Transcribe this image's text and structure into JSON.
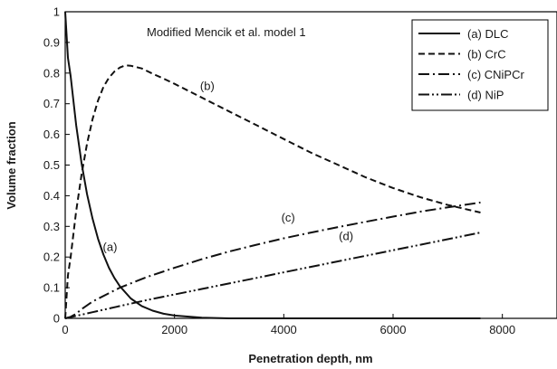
{
  "chart_data": {
    "type": "line",
    "title": "Modified Mencik et al. model 1",
    "xlabel": "Penetration depth, nm",
    "ylabel": "Volume fraction",
    "xlim": [
      0,
      9000
    ],
    "ylim": [
      0,
      1
    ],
    "xticks": [
      0,
      2000,
      4000,
      6000,
      8000
    ],
    "yticks": [
      0,
      0.1,
      0.2,
      0.3,
      0.4,
      0.5,
      0.6,
      0.7,
      0.8,
      0.9,
      1
    ],
    "grid": false,
    "legend": {
      "position": "top-right"
    },
    "series": [
      {
        "name": "(a)  DLC",
        "label": "(a)",
        "style": "solid",
        "x": [
          0,
          50,
          100,
          200,
          300,
          400,
          500,
          600,
          700,
          800,
          900,
          1000,
          1200,
          1400,
          1600,
          1800,
          2000,
          2500,
          3000,
          4000,
          5000,
          6000,
          7000,
          7600
        ],
        "y": [
          1.0,
          0.85,
          0.79,
          0.63,
          0.505,
          0.405,
          0.325,
          0.26,
          0.208,
          0.165,
          0.132,
          0.105,
          0.065,
          0.04,
          0.025,
          0.015,
          0.009,
          0.002,
          0.0,
          0.0,
          0.0,
          0.0,
          0.0,
          0.0
        ]
      },
      {
        "name": "(b)  CrC",
        "label": "(b)",
        "style": "dashed",
        "x": [
          0,
          50,
          100,
          200,
          300,
          400,
          500,
          600,
          700,
          800,
          900,
          1000,
          1100,
          1200,
          1400,
          1600,
          1800,
          2000,
          2500,
          3000,
          3500,
          4000,
          4500,
          5000,
          5500,
          6000,
          6500,
          7000,
          7600
        ],
        "y": [
          0.0,
          0.14,
          0.2,
          0.35,
          0.47,
          0.57,
          0.65,
          0.71,
          0.755,
          0.785,
          0.805,
          0.818,
          0.825,
          0.824,
          0.815,
          0.798,
          0.782,
          0.765,
          0.72,
          0.675,
          0.63,
          0.585,
          0.54,
          0.5,
          0.46,
          0.425,
          0.395,
          0.37,
          0.345
        ]
      },
      {
        "name": "(c)  CNiPCr",
        "label": "(c)",
        "style": "dashdot",
        "x": [
          0,
          100,
          200,
          300,
          500,
          1000,
          1500,
          2000,
          2500,
          3000,
          3500,
          4000,
          4500,
          5000,
          5500,
          6000,
          6500,
          7000,
          7600
        ],
        "y": [
          0.0,
          0.005,
          0.015,
          0.03,
          0.055,
          0.1,
          0.135,
          0.165,
          0.193,
          0.218,
          0.24,
          0.261,
          0.28,
          0.298,
          0.315,
          0.332,
          0.348,
          0.362,
          0.378
        ]
      },
      {
        "name": "(d)  NiP",
        "label": "(d)",
        "style": "dashdotdot",
        "x": [
          0,
          500,
          1000,
          1500,
          2000,
          2500,
          3000,
          3500,
          4000,
          4500,
          5000,
          5500,
          6000,
          6500,
          7000,
          7600
        ],
        "y": [
          0.0,
          0.02,
          0.04,
          0.06,
          0.078,
          0.096,
          0.114,
          0.132,
          0.15,
          0.168,
          0.186,
          0.204,
          0.222,
          0.24,
          0.258,
          0.28
        ]
      }
    ],
    "annotations": [
      {
        "text": "(a)",
        "x": 820,
        "y": 0.22
      },
      {
        "text": "(b)",
        "x": 2600,
        "y": 0.745
      },
      {
        "text": "(c)",
        "x": 4080,
        "y": 0.315
      },
      {
        "text": "(d)",
        "x": 5140,
        "y": 0.255
      }
    ]
  }
}
